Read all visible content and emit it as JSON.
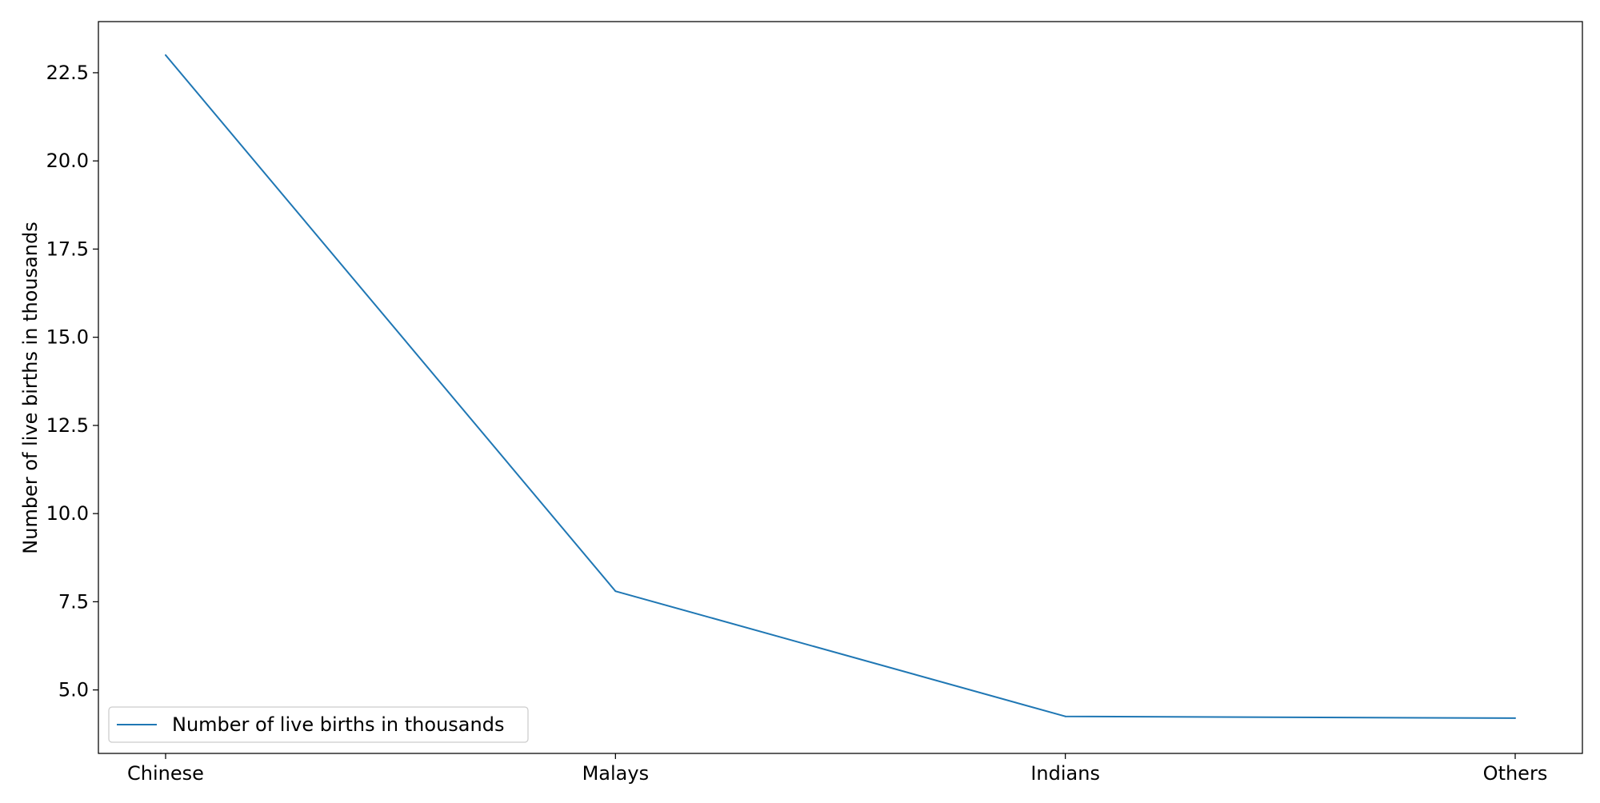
{
  "chart_data": {
    "type": "line",
    "categories": [
      "Chinese",
      "Malays",
      "Indians",
      "Others"
    ],
    "series": [
      {
        "name": "Number of live births in thousands",
        "values": [
          23.0,
          7.8,
          4.25,
          4.2
        ],
        "color": "#1f77b4"
      }
    ],
    "title": "",
    "xlabel": "",
    "ylabel": "Number of live births in thousands",
    "ylim": [
      3.2,
      23.95
    ],
    "yticks": [
      5.0,
      7.5,
      10.0,
      12.5,
      15.0,
      17.5,
      20.0,
      22.5
    ],
    "ytick_labels": [
      "5.0",
      "7.5",
      "10.0",
      "12.5",
      "15.0",
      "17.5",
      "20.0",
      "22.5"
    ],
    "grid": false,
    "legend": {
      "position": "lower-left",
      "entries": [
        "Number of live births in thousands"
      ]
    }
  }
}
